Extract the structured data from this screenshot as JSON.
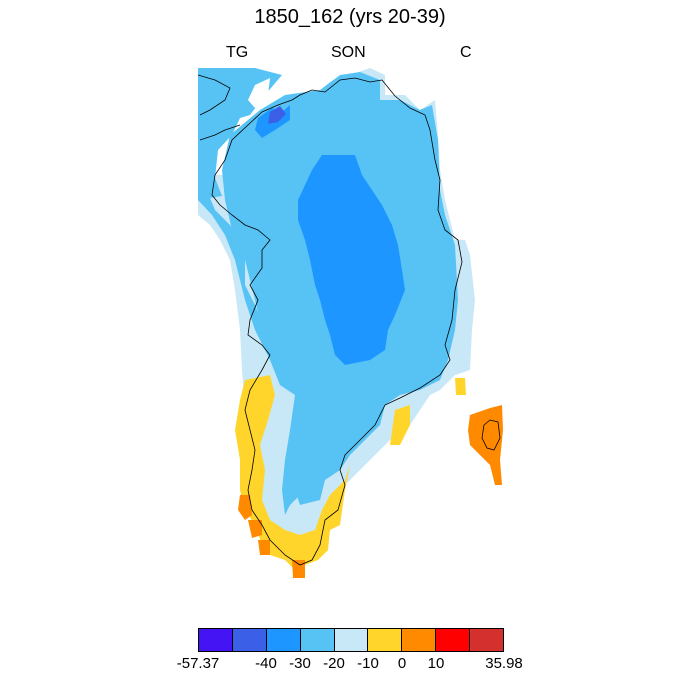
{
  "title": "1850_162 (yrs 20-39)",
  "left_label": "TG",
  "center_label": "SON",
  "right_label": "C",
  "colorbar": {
    "colors": [
      "#4414f4",
      "#3c5fe8",
      "#1e96ff",
      "#57c3f5",
      "#c8e8f7",
      "#ffd52b",
      "#ff8a00",
      "#ff0000",
      "#d3302e"
    ],
    "tick_labels": [
      "-57.37",
      "-40",
      "-30",
      "-20",
      "-10",
      "0",
      "10",
      "35.98"
    ]
  },
  "map": {
    "region": "Greenland",
    "palette": {
      "tier_minus30_to_minus40": "#1e96ff",
      "tier_minus20_to_minus30": "#57c3f5",
      "tier_minus10_to_minus20": "#c8e8f7",
      "tier_0_to_minus10": "#ffd52b",
      "tier_0_to_10": "#ff8a00",
      "tier_strong_negative": "#3c5fe8"
    }
  }
}
